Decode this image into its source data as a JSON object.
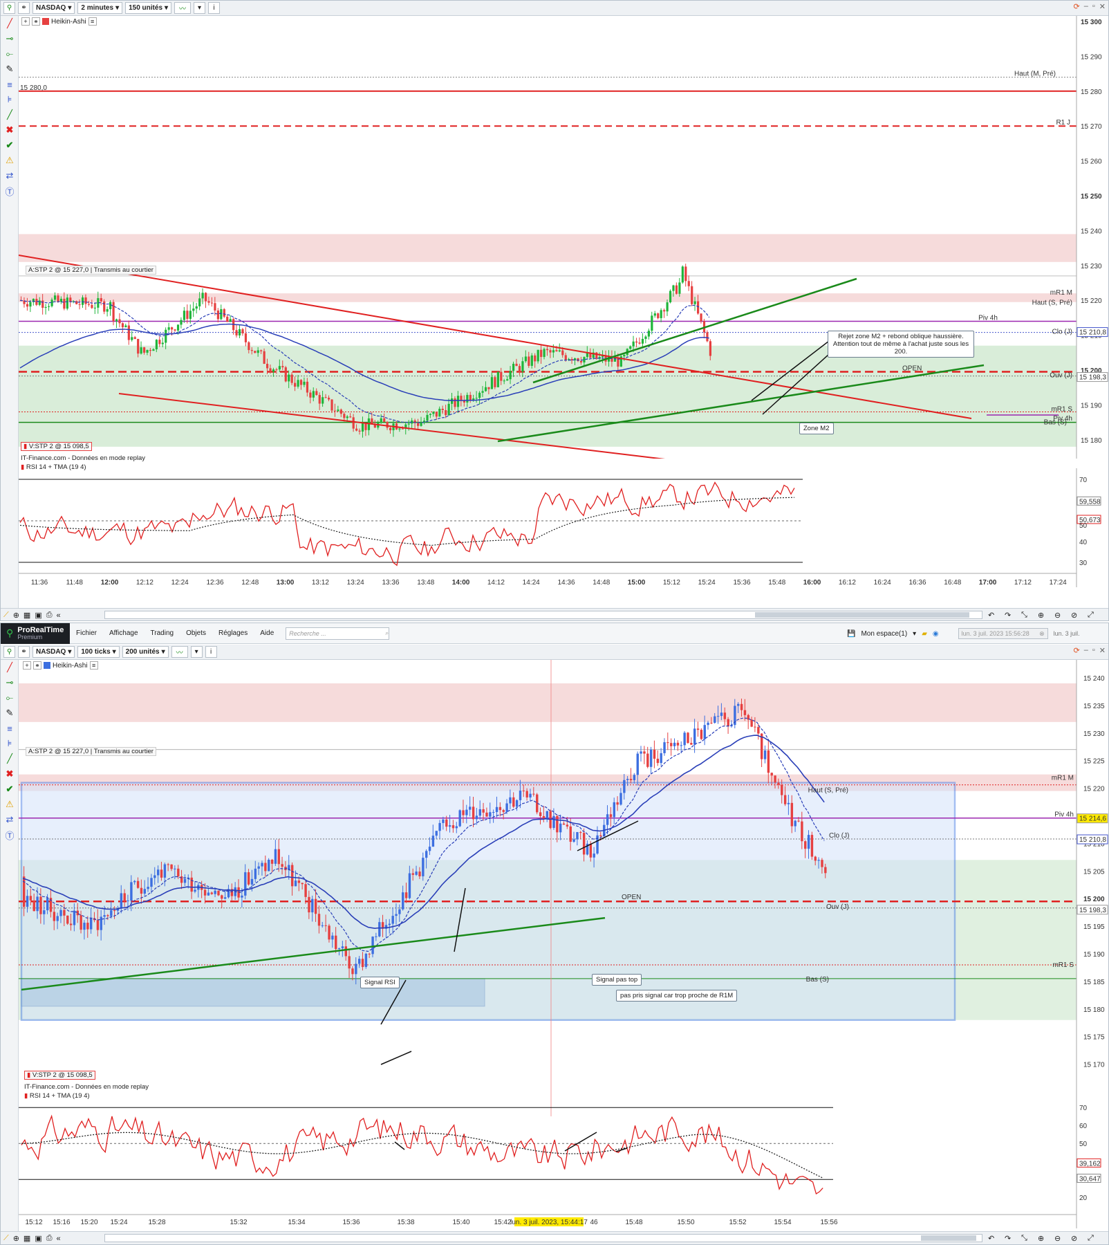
{
  "colors": {
    "up": "#1fb53a",
    "down": "#e64040",
    "up_blue": "#3d6fe0",
    "resistance_zone": "#f4d2d2",
    "support_zone": "#cfe8cf",
    "box_blue": "#d5e3fb",
    "trend_red": "#e02020",
    "trend_green": "#1a8a1a",
    "pivot": "#9c27b0"
  },
  "top": {
    "toolbar": {
      "instrument": "NASDAQ",
      "timeframe": "2 minutes",
      "units": "150 unités",
      "info": "i"
    },
    "chart_style": "Heikin-Ashi",
    "order_label": "A:STP 2 @ 15 227,0",
    "order_status": "Transmis au courtier",
    "sell_order_label": "V:STP 2 @ 15 098,5",
    "data_source": "IT-Finance.com - Données en mode replay",
    "indicator": "RSI 14 + TMA (19 4)",
    "note_line1": "Rejet zone M2 + rebond oblique haussière.",
    "note_line2": "Attention tout de même à l'achat juste sous les 200.",
    "zone_label": "Zone M2",
    "level_labels": {
      "haut_m": "Haut (M, Pré)",
      "r1j": "R1 J",
      "mr1m": "mR1 M",
      "haut_s": "Haut (S, Pré)",
      "piv4h": "Piv 4h",
      "clo_j": "Clo (J)",
      "open": "OPEN",
      "ouv_j": "Ouv (J)",
      "mr1s": "mR1 S",
      "piv4h_2": "Piv 4h",
      "bas": "Bas (S)",
      "left_level": "15 280,0"
    },
    "price_ticks": [
      "15 300",
      "15 290",
      "15 280",
      "15 270",
      "15 260",
      "15 250",
      "15 240",
      "15 230",
      "15 220",
      "15 210",
      "15 200",
      "15 190",
      "15 180"
    ],
    "price_tags": [
      "15 210,8",
      "15 198,3"
    ],
    "rsi_ticks": [
      "70",
      "59,558",
      "50,673",
      "50",
      "40",
      "30"
    ],
    "time_ticks": [
      "11:36",
      "11:48",
      "12:00",
      "12:12",
      "12:24",
      "12:36",
      "12:48",
      "13:00",
      "13:12",
      "13:24",
      "13:36",
      "13:48",
      "14:00",
      "14:12",
      "14:24",
      "14:36",
      "14:48",
      "15:00",
      "15:12",
      "15:24",
      "15:36",
      "15:48",
      "16:00",
      "16:12",
      "16:24",
      "16:36",
      "16:48",
      "17:00",
      "17:12",
      "17:24"
    ]
  },
  "bottom": {
    "menu": {
      "brand": "ProRealTime",
      "brand_sub": "Premium",
      "items": [
        "Fichier",
        "Affichage",
        "Trading",
        "Objets",
        "Réglages",
        "Aide"
      ],
      "search_placeholder": "Recherche ...",
      "workspace": "Mon espace(1)",
      "date": "lun. 3 juil. 2023 15:56:28",
      "date_right": "lun. 3 juil."
    },
    "toolbar": {
      "instrument": "NASDAQ",
      "timeframe": "100 ticks",
      "units": "200 unités",
      "info": "i"
    },
    "chart_style": "Heikin-Ashi",
    "order_label": "A:STP 2 @ 15 227,0",
    "order_status": "Transmis au courtier",
    "sell_order_label": "V:STP 2 @ 15 098,5",
    "data_source": "IT-Finance.com - Données en mode replay",
    "indicator": "RSI 14 + TMA (19 4)",
    "cursor_time": "lun. 3 juil. 2023, 15:44:17",
    "notes": {
      "signal_rsi": "Signal RSI",
      "signal_pas_top": "Signal pas top",
      "pas_pris": "pas pris signal car trop proche de R1M"
    },
    "level_labels": {
      "mr1m": "mR1 M",
      "haut_s": "Haut (S, Pré)",
      "piv4h": "Piv 4h",
      "clo_j": "Clo (J)",
      "open": "OPEN",
      "ouv_j": "Ouv (J)",
      "mr1s": "mR1 S",
      "bas": "Bas (S)"
    },
    "price_ticks": [
      "15 240",
      "15 235",
      "15 230",
      "15 225",
      "15 220",
      "15 215",
      "15 210",
      "15 205",
      "15 200",
      "15 195",
      "15 190",
      "15 185",
      "15 180",
      "15 175",
      "15 170"
    ],
    "price_tags": [
      "15 214,6",
      "15 210,8",
      "15 198,3"
    ],
    "rsi_ticks": [
      "70",
      "60",
      "50",
      "39,162",
      "30,647",
      "20"
    ],
    "time_ticks": [
      "15:12",
      "15:16",
      "15:20",
      "15:24",
      "15:28",
      "15:32",
      "15:34",
      "15:36",
      "15:38",
      "15:40",
      "15:42",
      "46",
      "15:48",
      "15:50",
      "15:52",
      "15:54",
      "15:56"
    ]
  }
}
